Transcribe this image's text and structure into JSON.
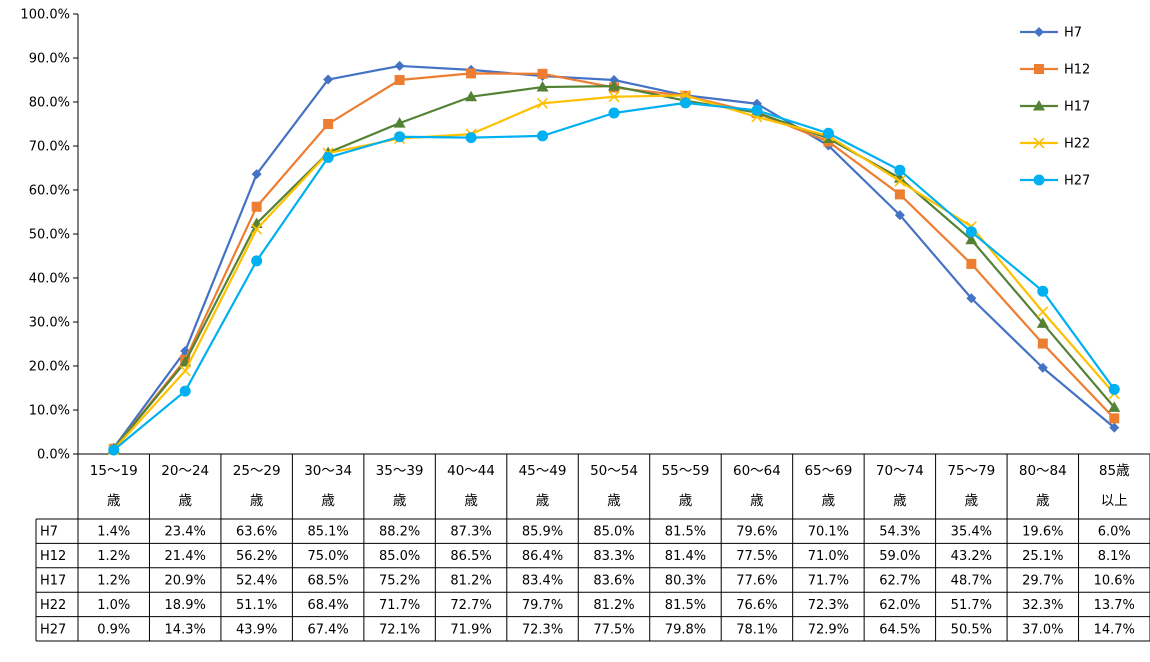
{
  "chart_data": {
    "type": "line",
    "title": "",
    "xlabel": "",
    "ylabel": "",
    "ylim": [
      0,
      100
    ],
    "y_ticks": [
      "0.0%",
      "10.0%",
      "20.0%",
      "30.0%",
      "40.0%",
      "50.0%",
      "60.0%",
      "70.0%",
      "80.0%",
      "90.0%",
      "100.0%"
    ],
    "categories": [
      {
        "top": "15〜19",
        "bottom": "歳"
      },
      {
        "top": "20〜24",
        "bottom": "歳"
      },
      {
        "top": "25〜29",
        "bottom": "歳"
      },
      {
        "top": "30〜34",
        "bottom": "歳"
      },
      {
        "top": "35〜39",
        "bottom": "歳"
      },
      {
        "top": "40〜44",
        "bottom": "歳"
      },
      {
        "top": "45〜49",
        "bottom": "歳"
      },
      {
        "top": "50〜54",
        "bottom": "歳"
      },
      {
        "top": "55〜59",
        "bottom": "歳"
      },
      {
        "top": "60〜64",
        "bottom": "歳"
      },
      {
        "top": "65〜69",
        "bottom": "歳"
      },
      {
        "top": "70〜74",
        "bottom": "歳"
      },
      {
        "top": "75〜79",
        "bottom": "歳"
      },
      {
        "top": "80〜84",
        "bottom": "歳"
      },
      {
        "top": "85歳",
        "bottom": "以上"
      }
    ],
    "legend_position": "top-right",
    "grid": false,
    "series": [
      {
        "name": "H7",
        "color": "#4472C4",
        "marker": "diamond",
        "values": [
          1.4,
          23.4,
          63.6,
          85.1,
          88.2,
          87.3,
          85.9,
          85.0,
          81.5,
          79.6,
          70.1,
          54.3,
          35.4,
          19.6,
          6.0
        ],
        "labels": [
          "1.4%",
          "23.4%",
          "63.6%",
          "85.1%",
          "88.2%",
          "87.3%",
          "85.9%",
          "85.0%",
          "81.5%",
          "79.6%",
          "70.1%",
          "54.3%",
          "35.4%",
          "19.6%",
          "6.0%"
        ]
      },
      {
        "name": "H12",
        "color": "#ED7D31",
        "marker": "square",
        "values": [
          1.2,
          21.4,
          56.2,
          75.0,
          85.0,
          86.5,
          86.4,
          83.3,
          81.4,
          77.5,
          71.0,
          59.0,
          43.2,
          25.1,
          8.1
        ],
        "labels": [
          "1.2%",
          "21.4%",
          "56.2%",
          "75.0%",
          "85.0%",
          "86.5%",
          "86.4%",
          "83.3%",
          "81.4%",
          "77.5%",
          "71.0%",
          "59.0%",
          "43.2%",
          "25.1%",
          "8.1%"
        ]
      },
      {
        "name": "H17",
        "color": "#548235",
        "marker": "triangle",
        "values": [
          1.2,
          20.9,
          52.4,
          68.5,
          75.2,
          81.2,
          83.4,
          83.6,
          80.3,
          77.6,
          71.7,
          62.7,
          48.7,
          29.7,
          10.6
        ],
        "labels": [
          "1.2%",
          "20.9%",
          "52.4%",
          "68.5%",
          "75.2%",
          "81.2%",
          "83.4%",
          "83.6%",
          "80.3%",
          "77.6%",
          "71.7%",
          "62.7%",
          "48.7%",
          "29.7%",
          "10.6%"
        ]
      },
      {
        "name": "H22",
        "color": "#FFC000",
        "marker": "x",
        "values": [
          1.0,
          18.9,
          51.1,
          68.4,
          71.7,
          72.7,
          79.7,
          81.2,
          81.5,
          76.6,
          72.3,
          62.0,
          51.7,
          32.3,
          13.7
        ],
        "labels": [
          "1.0%",
          "18.9%",
          "51.1%",
          "68.4%",
          "71.7%",
          "72.7%",
          "79.7%",
          "81.2%",
          "81.5%",
          "76.6%",
          "72.3%",
          "62.0%",
          "51.7%",
          "32.3%",
          "13.7%"
        ]
      },
      {
        "name": "H27",
        "color": "#00B0F0",
        "marker": "circle",
        "values": [
          0.9,
          14.3,
          43.9,
          67.4,
          72.1,
          71.9,
          72.3,
          77.5,
          79.8,
          78.1,
          72.9,
          64.5,
          50.5,
          37.0,
          14.7
        ],
        "labels": [
          "0.9%",
          "14.3%",
          "43.9%",
          "67.4%",
          "72.1%",
          "71.9%",
          "72.3%",
          "77.5%",
          "79.8%",
          "78.1%",
          "72.9%",
          "64.5%",
          "50.5%",
          "37.0%",
          "14.7%"
        ]
      }
    ]
  }
}
